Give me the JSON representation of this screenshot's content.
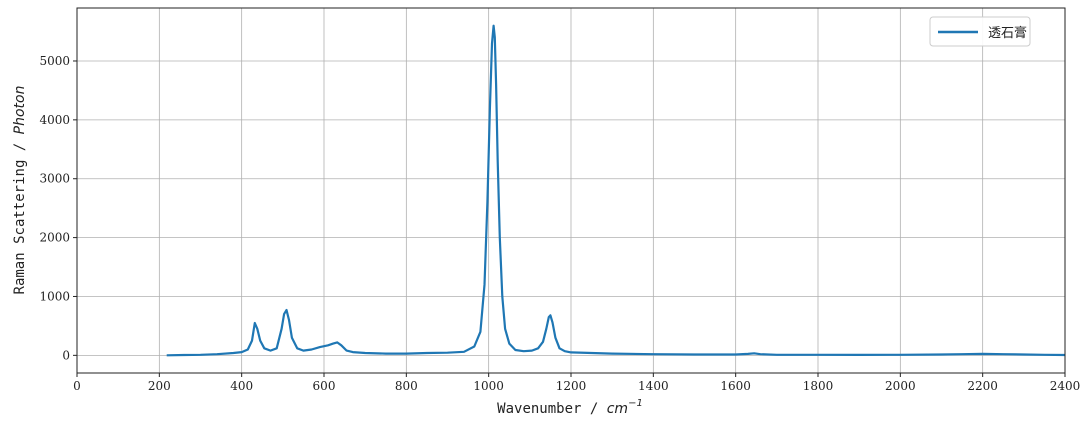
{
  "chart_data": {
    "type": "line",
    "title": "",
    "xlabel": {
      "prefix": "Wavenumber / ",
      "unit": "cm",
      "unit_sup": "−1"
    },
    "ylabel": {
      "prefix": "Raman Scattering / ",
      "unit": "Photon"
    },
    "xlim": [
      0,
      2400
    ],
    "ylim": [
      -300,
      5900
    ],
    "xticks": [
      0,
      200,
      400,
      600,
      800,
      1000,
      1200,
      1400,
      1600,
      1800,
      2000,
      2200,
      2400
    ],
    "yticks": [
      0,
      1000,
      2000,
      3000,
      4000,
      5000
    ],
    "grid": true,
    "legend_position": "top-right",
    "series": [
      {
        "name": "透石膏",
        "color": "#1f77b4",
        "x": [
          218,
          260,
          300,
          340,
          380,
          400,
          415,
          425,
          432,
          438,
          445,
          455,
          470,
          485,
          497,
          503,
          509,
          515,
          522,
          535,
          550,
          570,
          590,
          610,
          622,
          632,
          642,
          655,
          670,
          700,
          750,
          800,
          850,
          900,
          940,
          965,
          980,
          990,
          997,
          1003,
          1008,
          1012,
          1015,
          1018,
          1022,
          1027,
          1033,
          1040,
          1050,
          1065,
          1085,
          1105,
          1120,
          1132,
          1140,
          1146,
          1150,
          1155,
          1162,
          1172,
          1185,
          1200,
          1250,
          1300,
          1400,
          1500,
          1600,
          1630,
          1645,
          1660,
          1700,
          1800,
          1900,
          2000,
          2100,
          2150,
          2200,
          2250,
          2300,
          2350,
          2400
        ],
        "y": [
          0,
          5,
          10,
          20,
          40,
          55,
          100,
          250,
          550,
          450,
          250,
          120,
          80,
          120,
          450,
          700,
          770,
          600,
          300,
          120,
          80,
          100,
          140,
          170,
          200,
          220,
          170,
          80,
          55,
          40,
          30,
          30,
          40,
          45,
          60,
          150,
          400,
          1200,
          2600,
          4200,
          5300,
          5600,
          5400,
          4600,
          3300,
          2000,
          1000,
          450,
          200,
          90,
          70,
          80,
          120,
          230,
          450,
          650,
          680,
          560,
          300,
          120,
          70,
          50,
          40,
          30,
          20,
          15,
          15,
          25,
          35,
          20,
          10,
          10,
          8,
          10,
          15,
          20,
          25,
          20,
          15,
          10,
          5
        ]
      }
    ]
  }
}
